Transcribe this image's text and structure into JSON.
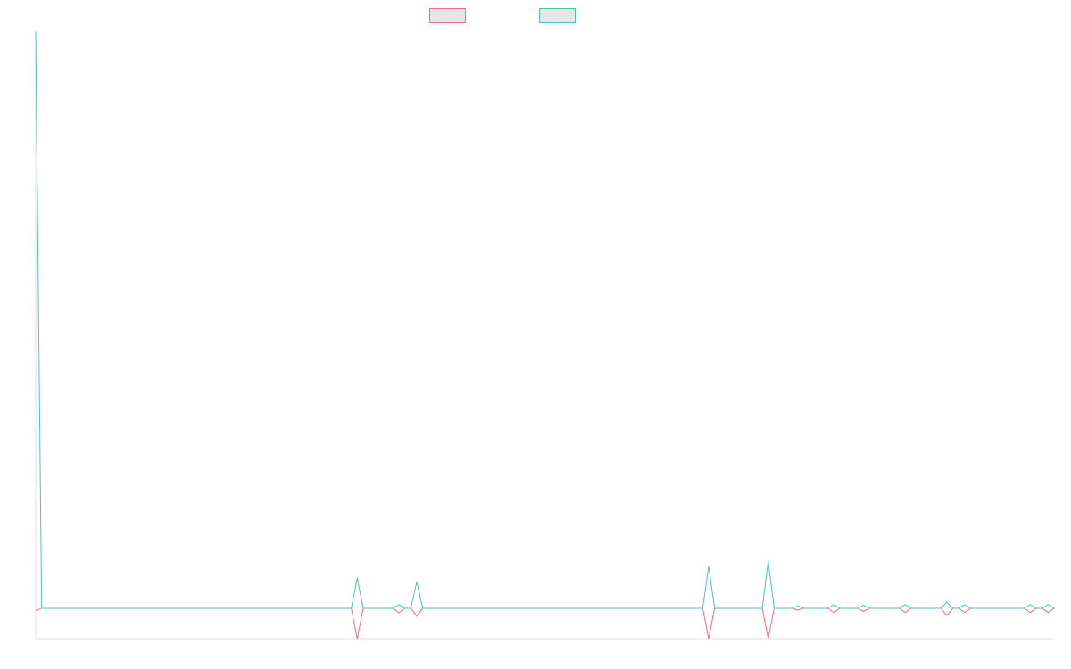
{
  "chart_data": {
    "type": "line",
    "x": [
      0,
      1,
      53,
      54,
      55,
      60,
      61,
      62,
      63,
      64,
      65,
      112,
      113,
      114,
      122,
      123,
      124,
      127,
      128,
      129,
      133,
      134,
      135,
      138,
      139,
      140,
      145,
      146,
      147,
      152,
      153,
      154,
      155,
      156,
      157,
      166,
      167,
      168,
      169,
      170,
      171
    ],
    "series": [
      {
        "color": "#ff6384",
        "values": [
          -0.4,
          0,
          0,
          -5,
          0,
          0,
          -0.7,
          0,
          0,
          -1.3,
          0,
          0,
          -5,
          0,
          0,
          -5,
          0,
          0,
          -0.3,
          0,
          0,
          -0.7,
          0,
          0,
          -0.5,
          0,
          0,
          -0.7,
          0,
          0,
          -1.2,
          0,
          0,
          -0.7,
          0,
          0,
          -0.7,
          0,
          0,
          -0.7,
          0
        ]
      },
      {
        "color": "#4bc0c0",
        "values": [
          95,
          0,
          0,
          5,
          0,
          0,
          0.6,
          0,
          0,
          4.4,
          0,
          0,
          6.9,
          0,
          0,
          7.8,
          0,
          0,
          0.4,
          0,
          0,
          0.6,
          0,
          0,
          0.5,
          0,
          0,
          0.6,
          0,
          0,
          1,
          0,
          0,
          0.6,
          0,
          0,
          0.6,
          0,
          0,
          0.6,
          0
        ]
      }
    ],
    "xlim": [
      0,
      171
    ],
    "ylim": [
      -5,
      95
    ]
  }
}
